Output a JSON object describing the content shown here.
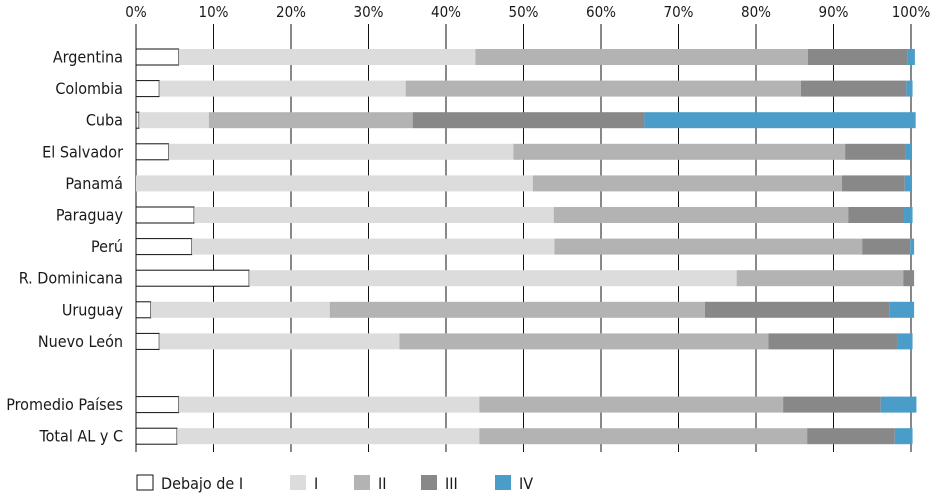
{
  "chart_data": {
    "type": "bar",
    "orientation": "horizontal",
    "stacked": "percent",
    "x_ticks": [
      "0%",
      "10%",
      "20%",
      "30%",
      "40%",
      "50%",
      "60%",
      "70%",
      "80%",
      "90%",
      "100%"
    ],
    "xlim": [
      0,
      100
    ],
    "grid": true,
    "legend_position": "bottom-left",
    "categories": [
      "Argentina",
      "Colombia",
      "Cuba",
      "El Salvador",
      "Panamá",
      "Paraguay",
      "Perú",
      "R. Dominicana",
      "Uruguay",
      "Nuevo León",
      "",
      "Promedio Países",
      "Total AL y C"
    ],
    "series": [
      {
        "name": "Debajo de I",
        "color": "#ffffff",
        "values": [
          5.5,
          3.0,
          0.4,
          4.2,
          0.0,
          7.5,
          7.2,
          14.6,
          1.9,
          3.0,
          null,
          5.5,
          5.3
        ]
      },
      {
        "name": "I",
        "color": "#dcdcdd",
        "values": [
          38.3,
          31.8,
          9.0,
          44.5,
          51.2,
          46.4,
          46.8,
          62.9,
          23.1,
          31.0,
          null,
          38.8,
          39.0
        ]
      },
      {
        "name": "II",
        "color": "#b3b3b4",
        "values": [
          42.9,
          51.0,
          26.3,
          42.8,
          39.9,
          38.0,
          39.7,
          21.5,
          48.4,
          47.6,
          null,
          39.2,
          42.3
        ]
      },
      {
        "name": "III",
        "color": "#888888",
        "values": [
          12.8,
          13.6,
          29.9,
          7.8,
          8.1,
          7.2,
          6.2,
          1.4,
          23.8,
          16.6,
          null,
          12.6,
          11.3
        ]
      },
      {
        "name": "IV",
        "color": "#4a9cc9",
        "values": [
          1.0,
          0.8,
          35.0,
          0.7,
          0.8,
          1.1,
          0.5,
          0.0,
          3.2,
          2.0,
          null,
          4.6,
          2.3
        ]
      }
    ]
  }
}
